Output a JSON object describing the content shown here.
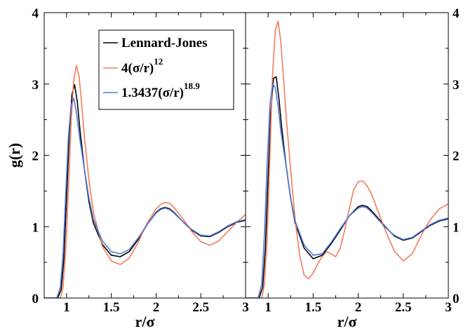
{
  "chart_data": [
    {
      "type": "line",
      "panel": "left",
      "xlabel": "r/σ",
      "ylabel": "g(r)",
      "xlim": [
        0.75,
        3.0
      ],
      "ylim": [
        0,
        4
      ],
      "x_ticks": [
        "1",
        "1.5",
        "2",
        "2.5",
        "3"
      ],
      "y_ticks": [
        "0",
        "1",
        "2",
        "3",
        "4"
      ],
      "y_tick_side": "left",
      "series": [
        {
          "name": "Lennard-Jones",
          "color": "#000000",
          "x": [
            0.75,
            0.9,
            0.94,
            0.97,
            1.0,
            1.03,
            1.06,
            1.09,
            1.12,
            1.15,
            1.2,
            1.25,
            1.3,
            1.4,
            1.5,
            1.6,
            1.7,
            1.8,
            1.9,
            2.0,
            2.05,
            2.1,
            2.15,
            2.2,
            2.3,
            2.4,
            2.5,
            2.6,
            2.7,
            2.8,
            2.9,
            3.0
          ],
          "y": [
            0,
            0,
            0.12,
            0.55,
            1.4,
            2.3,
            2.85,
            2.99,
            2.75,
            2.35,
            1.8,
            1.35,
            1.05,
            0.75,
            0.6,
            0.58,
            0.65,
            0.82,
            1.03,
            1.2,
            1.25,
            1.27,
            1.25,
            1.2,
            1.07,
            0.95,
            0.87,
            0.86,
            0.92,
            1.0,
            1.06,
            1.09
          ]
        },
        {
          "name": "4(σ/r)^12",
          "color": "#f47a5a",
          "x": [
            0.75,
            0.93,
            0.96,
            0.99,
            1.02,
            1.05,
            1.08,
            1.11,
            1.14,
            1.17,
            1.2,
            1.25,
            1.3,
            1.4,
            1.5,
            1.6,
            1.7,
            1.8,
            1.9,
            2.0,
            2.05,
            2.1,
            2.15,
            2.2,
            2.3,
            2.4,
            2.5,
            2.6,
            2.7,
            2.8,
            2.9,
            3.0
          ],
          "y": [
            0,
            0,
            0.15,
            0.65,
            1.5,
            2.45,
            3.05,
            3.26,
            3.1,
            2.7,
            2.25,
            1.65,
            1.2,
            0.72,
            0.52,
            0.47,
            0.56,
            0.78,
            1.05,
            1.25,
            1.31,
            1.34,
            1.33,
            1.27,
            1.11,
            0.93,
            0.79,
            0.74,
            0.8,
            0.93,
            1.06,
            1.17
          ]
        },
        {
          "name": "1.3437(σ/r)^18.9",
          "color": "#4f78d8",
          "x": [
            0.75,
            0.89,
            0.93,
            0.96,
            0.99,
            1.02,
            1.05,
            1.08,
            1.11,
            1.14,
            1.2,
            1.25,
            1.3,
            1.4,
            1.5,
            1.6,
            1.7,
            1.8,
            1.9,
            2.0,
            2.05,
            2.1,
            2.15,
            2.2,
            2.3,
            2.4,
            2.5,
            2.6,
            2.7,
            2.8,
            2.9,
            3.0
          ],
          "y": [
            0,
            0,
            0.15,
            0.6,
            1.45,
            2.25,
            2.7,
            2.8,
            2.6,
            2.3,
            1.8,
            1.4,
            1.1,
            0.8,
            0.65,
            0.62,
            0.68,
            0.84,
            1.03,
            1.19,
            1.24,
            1.26,
            1.24,
            1.19,
            1.07,
            0.96,
            0.88,
            0.87,
            0.93,
            1.01,
            1.07,
            1.1
          ]
        }
      ],
      "legend": {
        "placement": "top-right",
        "entries": [
          {
            "base": "Lennard-Jones",
            "sup": ""
          },
          {
            "base": "4(σ/r)",
            "sup": "12"
          },
          {
            "base": "1.3437(σ/r)",
            "sup": "18.9"
          }
        ]
      }
    },
    {
      "type": "line",
      "panel": "right",
      "xlabel": "r/σ",
      "ylabel": "",
      "xlim": [
        0.75,
        3.0
      ],
      "ylim": [
        0,
        4
      ],
      "x_ticks": [
        "1",
        "1.5",
        "2",
        "2.5",
        "3"
      ],
      "y_ticks": [
        "0",
        "1",
        "2",
        "3",
        "4"
      ],
      "y_tick_side": "right",
      "series": [
        {
          "name": "Lennard-Jones",
          "color": "#000000",
          "x": [
            0.75,
            0.9,
            0.94,
            0.97,
            1.0,
            1.03,
            1.06,
            1.09,
            1.12,
            1.15,
            1.2,
            1.25,
            1.3,
            1.4,
            1.5,
            1.6,
            1.7,
            1.8,
            1.9,
            2.0,
            2.05,
            2.1,
            2.15,
            2.2,
            2.3,
            2.4,
            2.5,
            2.6,
            2.7,
            2.8,
            2.9,
            3.0
          ],
          "y": [
            0,
            0,
            0.15,
            0.7,
            1.7,
            2.6,
            3.08,
            3.1,
            2.8,
            2.4,
            1.85,
            1.4,
            1.05,
            0.7,
            0.55,
            0.6,
            0.76,
            0.95,
            1.15,
            1.28,
            1.3,
            1.28,
            1.22,
            1.15,
            1.0,
            0.87,
            0.81,
            0.84,
            0.93,
            1.02,
            1.08,
            1.11
          ]
        },
        {
          "name": "4(σ/r)^12",
          "color": "#f47a5a",
          "x": [
            0.75,
            0.93,
            0.96,
            0.99,
            1.02,
            1.05,
            1.08,
            1.11,
            1.14,
            1.17,
            1.2,
            1.25,
            1.3,
            1.35,
            1.4,
            1.45,
            1.5,
            1.55,
            1.6,
            1.65,
            1.7,
            1.75,
            1.8,
            1.85,
            1.9,
            1.95,
            2.0,
            2.05,
            2.1,
            2.15,
            2.2,
            2.3,
            2.4,
            2.5,
            2.6,
            2.7,
            2.8,
            2.9,
            3.0
          ],
          "y": [
            0,
            0,
            0.2,
            0.85,
            2.0,
            3.15,
            3.75,
            3.88,
            3.6,
            3.1,
            2.55,
            1.8,
            1.1,
            0.6,
            0.32,
            0.27,
            0.35,
            0.48,
            0.58,
            0.65,
            0.62,
            0.58,
            0.7,
            0.95,
            1.25,
            1.52,
            1.63,
            1.64,
            1.57,
            1.45,
            1.28,
            0.95,
            0.66,
            0.52,
            0.62,
            0.88,
            1.1,
            1.25,
            1.32
          ]
        },
        {
          "name": "1.3437(σ/r)^18.9",
          "color": "#4f78d8",
          "x": [
            0.75,
            0.89,
            0.93,
            0.96,
            0.99,
            1.02,
            1.05,
            1.08,
            1.11,
            1.14,
            1.2,
            1.25,
            1.3,
            1.4,
            1.5,
            1.6,
            1.7,
            1.8,
            1.9,
            2.0,
            2.05,
            2.1,
            2.15,
            2.2,
            2.3,
            2.4,
            2.5,
            2.6,
            2.7,
            2.8,
            2.9,
            3.0
          ],
          "y": [
            0,
            0,
            0.2,
            0.9,
            1.9,
            2.7,
            3.0,
            2.95,
            2.7,
            2.35,
            1.85,
            1.4,
            1.08,
            0.74,
            0.6,
            0.62,
            0.78,
            0.97,
            1.15,
            1.26,
            1.28,
            1.26,
            1.2,
            1.13,
            0.99,
            0.88,
            0.82,
            0.85,
            0.94,
            1.03,
            1.09,
            1.12
          ]
        }
      ]
    }
  ]
}
